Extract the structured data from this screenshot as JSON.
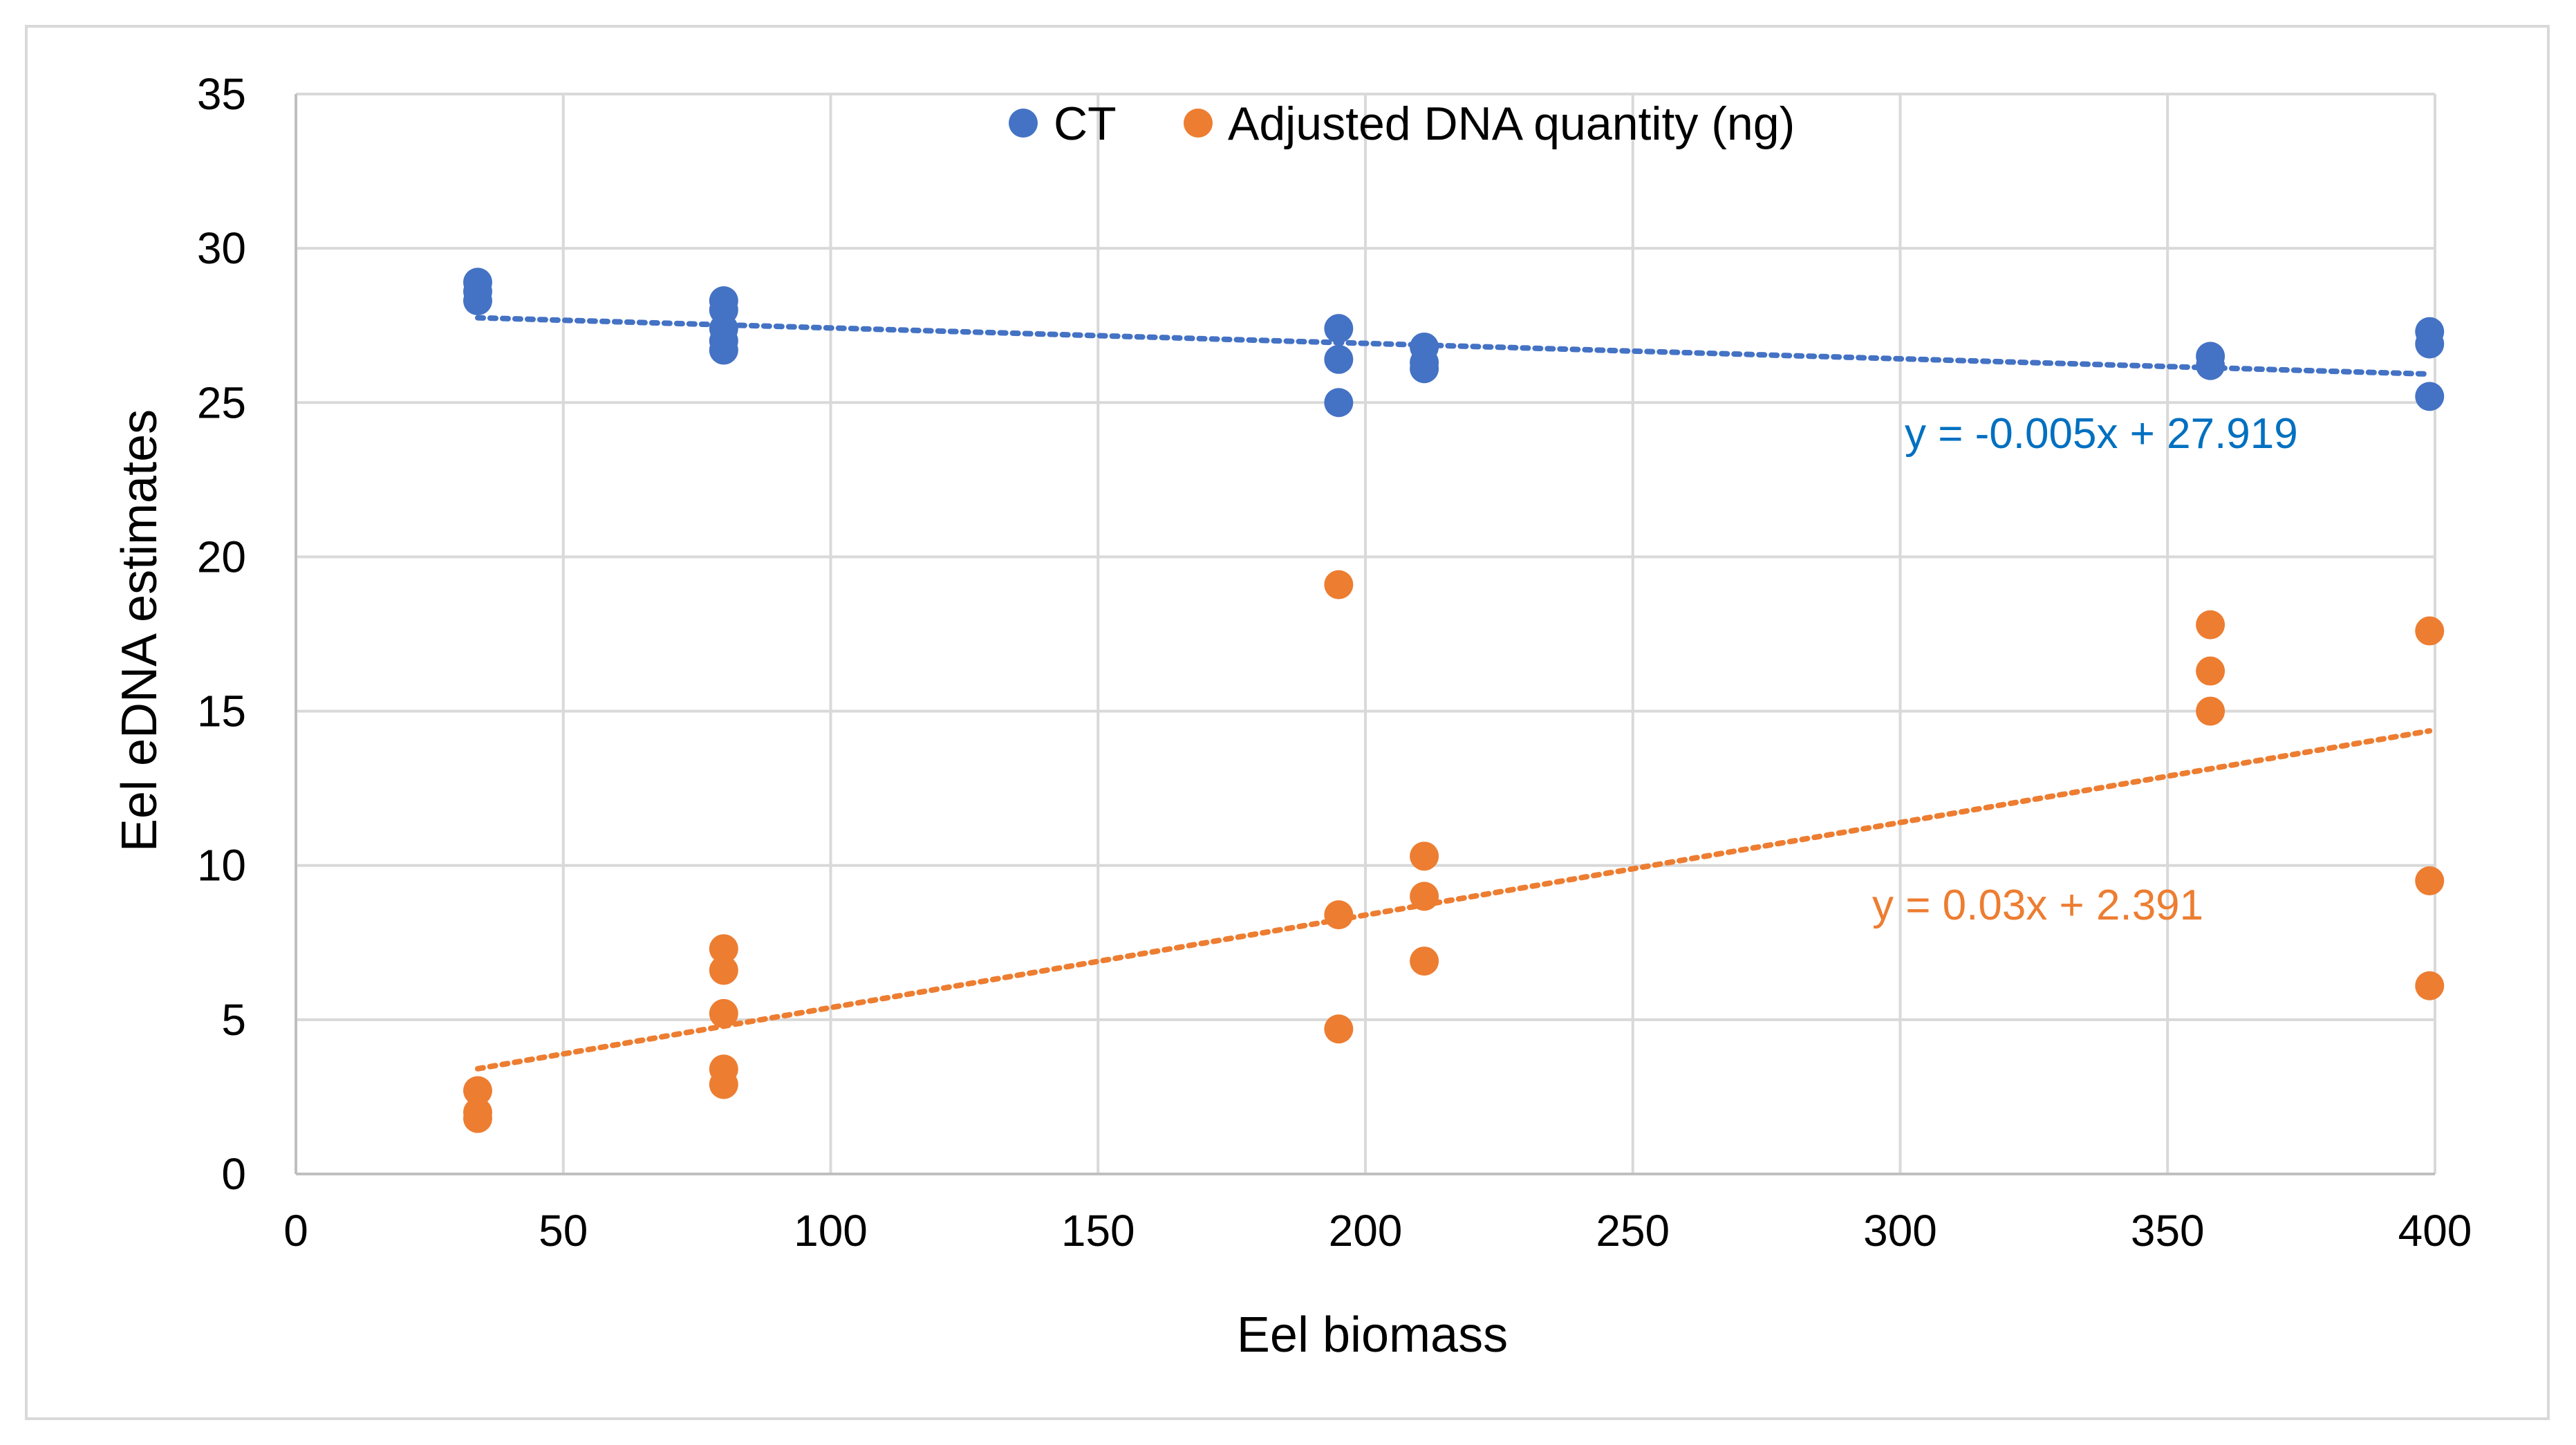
{
  "chart_data": {
    "type": "scatter",
    "title": "",
    "xlabel": "Eel biomass",
    "ylabel": "Eel eDNA estimates",
    "xlim": [
      0,
      400
    ],
    "ylim": [
      0,
      35
    ],
    "xticks": [
      0,
      50,
      100,
      150,
      200,
      250,
      300,
      350,
      400
    ],
    "yticks": [
      0,
      5,
      10,
      15,
      20,
      25,
      30,
      35
    ],
    "grid": true,
    "legend_position": "top-center",
    "series": [
      {
        "name": "CT",
        "color": "#4472C4",
        "points": [
          [
            34,
            28.9
          ],
          [
            34,
            28.6
          ],
          [
            34,
            28.3
          ],
          [
            80,
            28.3
          ],
          [
            80,
            28.0
          ],
          [
            80,
            27.4
          ],
          [
            80,
            27.0
          ],
          [
            80,
            26.7
          ],
          [
            195,
            27.4
          ],
          [
            195,
            26.4
          ],
          [
            195,
            25.0
          ],
          [
            211,
            26.8
          ],
          [
            211,
            26.3
          ],
          [
            211,
            26.1
          ],
          [
            358,
            26.5
          ],
          [
            358,
            26.2
          ],
          [
            399,
            27.3
          ],
          [
            399,
            26.9
          ],
          [
            399,
            25.2
          ]
        ],
        "trendline": {
          "slope": -0.005,
          "intercept": 27.919,
          "x_range": [
            34,
            399
          ],
          "label": "y = -0.005x + 27.919",
          "label_color": "#0070C0"
        }
      },
      {
        "name": "Adjusted DNA quantity (ng)",
        "color": "#ED7D31",
        "points": [
          [
            34,
            2.7
          ],
          [
            34,
            2.0
          ],
          [
            34,
            1.8
          ],
          [
            80,
            7.3
          ],
          [
            80,
            6.6
          ],
          [
            80,
            5.2
          ],
          [
            80,
            3.4
          ],
          [
            80,
            2.9
          ],
          [
            195,
            19.1
          ],
          [
            195,
            8.4
          ],
          [
            195,
            4.7
          ],
          [
            211,
            10.3
          ],
          [
            211,
            9.0
          ],
          [
            211,
            6.9
          ],
          [
            358,
            17.8
          ],
          [
            358,
            16.3
          ],
          [
            358,
            15.0
          ],
          [
            399,
            17.6
          ],
          [
            399,
            9.5
          ],
          [
            399,
            6.1
          ]
        ],
        "trendline": {
          "slope": 0.03,
          "intercept": 2.391,
          "x_range": [
            34,
            399
          ],
          "label": "y = 0.03x + 2.391",
          "label_color": "#ED7D31"
        }
      }
    ]
  }
}
